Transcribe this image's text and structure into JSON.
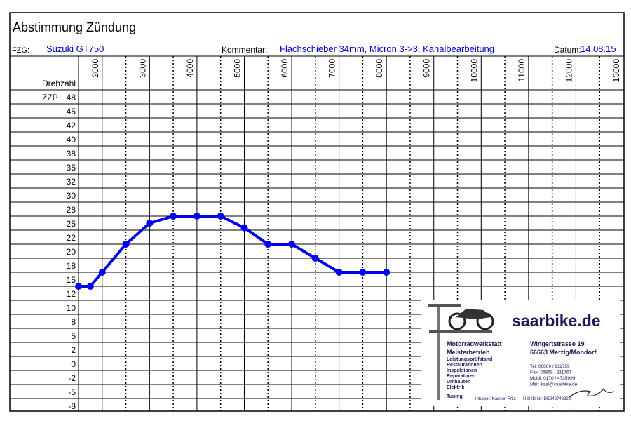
{
  "form": {
    "title": "Abstimmung Zündung",
    "vehicle_label": "FZG:",
    "vehicle": "Suzuki GT750",
    "comment_label": "Kommentar:",
    "comment": "Flachschieber 34mm, Micron 3->3, Kanalbearbeitung",
    "date_label": "Datum:",
    "date": "14.08.15"
  },
  "chart_data": {
    "type": "line",
    "x_label": "Drehzahl",
    "y_label": "ZZP",
    "x": [
      1500,
      1750,
      2000,
      2500,
      3000,
      3500,
      4000,
      4500,
      5000,
      5500,
      6000,
      6500,
      7000,
      7500,
      8000
    ],
    "values": [
      15,
      15,
      18,
      22,
      26.5,
      28,
      28,
      28,
      25.5,
      22,
      22,
      20,
      18,
      18,
      18
    ],
    "color": "#0000ee",
    "xlim": [
      1500,
      13000
    ],
    "xticks": [
      2000,
      3000,
      4000,
      5000,
      6000,
      7000,
      8000,
      9000,
      10000,
      11000,
      12000,
      13000
    ],
    "xminorticks": [
      2500,
      3500,
      4500,
      5500,
      6500,
      7500,
      8500,
      9500,
      10500,
      11500,
      12500
    ],
    "yticks": [
      48,
      45,
      42,
      40,
      38,
      35,
      32,
      30,
      28,
      25,
      22,
      20,
      18,
      15,
      12,
      10,
      8,
      5,
      2,
      0,
      -2,
      -5,
      -8
    ]
  },
  "stamp": {
    "brand": "saarbike.de",
    "services": [
      "Motorradwerkstatt",
      "Meisterbetrieb",
      "Leistungsprüfstand",
      "Restaurationen",
      "Inspektionen",
      "Reparaturen",
      "Umbauten",
      "Elektrik",
      "Tuning"
    ],
    "address": [
      "Wingertstrasse 19",
      "66663 Merzig/Mondorf"
    ],
    "contact": [
      "Tel:   06869 / 911759",
      "Fax:   06869 / 911767",
      "Mobil:  0170 / 4735999",
      "Mail: kasi@saarbike.de"
    ],
    "owner": "Inhaber: Karsten Fritz",
    "tax": "USt-ID-Nr:   DE242743329"
  }
}
